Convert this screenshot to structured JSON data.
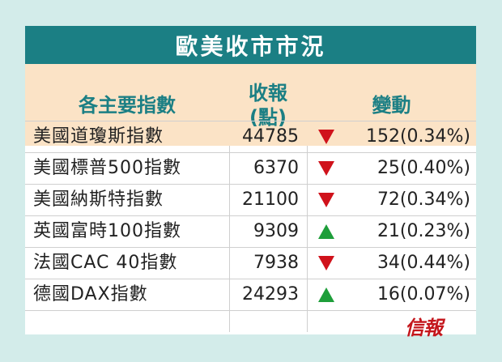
{
  "title": "歐美收市市況",
  "headers": {
    "name": "各主要指數",
    "close_line1": "收報",
    "close_line2": "(點)",
    "change": "變動"
  },
  "rows": [
    {
      "name": "美國道瓊斯指數",
      "close": "44785",
      "direction": "down",
      "change": "152(0.34%)"
    },
    {
      "name": "美國標普500指數",
      "close": "6370",
      "direction": "down",
      "change": "25(0.40%)"
    },
    {
      "name": "美國納斯特指數",
      "close": "21100",
      "direction": "down",
      "change": "72(0.34%)"
    },
    {
      "name": "英國富時100指數",
      "close": "9309",
      "direction": "up",
      "change": "21(0.23%)"
    },
    {
      "name": "法國CAC 40指數",
      "close": "7938",
      "direction": "down",
      "change": "34(0.44%)"
    },
    {
      "name": "德國DAX指數",
      "close": "24293",
      "direction": "up",
      "change": "16(0.07%)"
    }
  ],
  "logo_text": "信報",
  "colors": {
    "teal": "#1b7f84",
    "header_bg": "#fbe3c6",
    "up": "#1e9e3a",
    "down": "#d0121b",
    "logo": "#c4161c"
  }
}
